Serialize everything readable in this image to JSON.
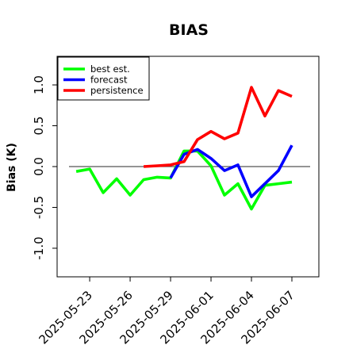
{
  "chart_data": {
    "type": "line",
    "title": "BIAS",
    "xlabel": "",
    "ylabel": "Bias (K)",
    "ylim": [
      -1.35,
      1.35
    ],
    "yticks": [
      -1.0,
      -0.5,
      0.0,
      0.5,
      1.0
    ],
    "ytick_labels": [
      "-1.0",
      "-0.5",
      "0.0",
      "0.5",
      "1.0"
    ],
    "xlim": [
      "2025-05-20T14:00",
      "2025-06-09T00:00"
    ],
    "xticks": [
      "2025-05-23",
      "2025-05-26",
      "2025-05-29",
      "2025-06-01",
      "2025-06-04",
      "2025-06-07"
    ],
    "highlight_tick": "2025-05-29",
    "highlight_color": "#1f7a1f",
    "reference_line": 0,
    "reference_color": "#555555",
    "grid": false,
    "legend_position": "top-left",
    "series": [
      {
        "name": "best est.",
        "color": "#00ff00",
        "x": [
          "2025-05-22",
          "2025-05-23",
          "2025-05-24",
          "2025-05-25",
          "2025-05-26",
          "2025-05-27",
          "2025-05-28",
          "2025-05-29",
          "2025-05-30",
          "2025-05-31",
          "2025-06-01",
          "2025-06-02",
          "2025-06-03",
          "2025-06-04",
          "2025-06-05",
          "2025-06-06",
          "2025-06-07"
        ],
        "y": [
          -0.06,
          -0.03,
          -0.32,
          -0.15,
          -0.35,
          -0.16,
          -0.13,
          -0.14,
          0.19,
          0.19,
          0.01,
          -0.35,
          -0.21,
          -0.52,
          -0.23,
          -0.21,
          -0.19
        ]
      },
      {
        "name": "forecast",
        "color": "#0000ff",
        "x": [
          "2025-05-29",
          "2025-05-30",
          "2025-05-31",
          "2025-06-01",
          "2025-06-02",
          "2025-06-03",
          "2025-06-04",
          "2025-06-05",
          "2025-06-06",
          "2025-06-07"
        ],
        "y": [
          -0.14,
          0.15,
          0.21,
          0.1,
          -0.05,
          0.02,
          -0.37,
          -0.21,
          -0.05,
          0.26
        ]
      },
      {
        "name": "persistence",
        "color": "#ff0000",
        "x": [
          "2025-05-27",
          "2025-05-28",
          "2025-05-29",
          "2025-05-30",
          "2025-05-31",
          "2025-06-01",
          "2025-06-02",
          "2025-06-03",
          "2025-06-04",
          "2025-06-05",
          "2025-06-06",
          "2025-06-07"
        ],
        "y": [
          0.0,
          0.01,
          0.02,
          0.06,
          0.33,
          0.43,
          0.34,
          0.41,
          0.97,
          0.62,
          0.93,
          0.86
        ]
      }
    ]
  }
}
